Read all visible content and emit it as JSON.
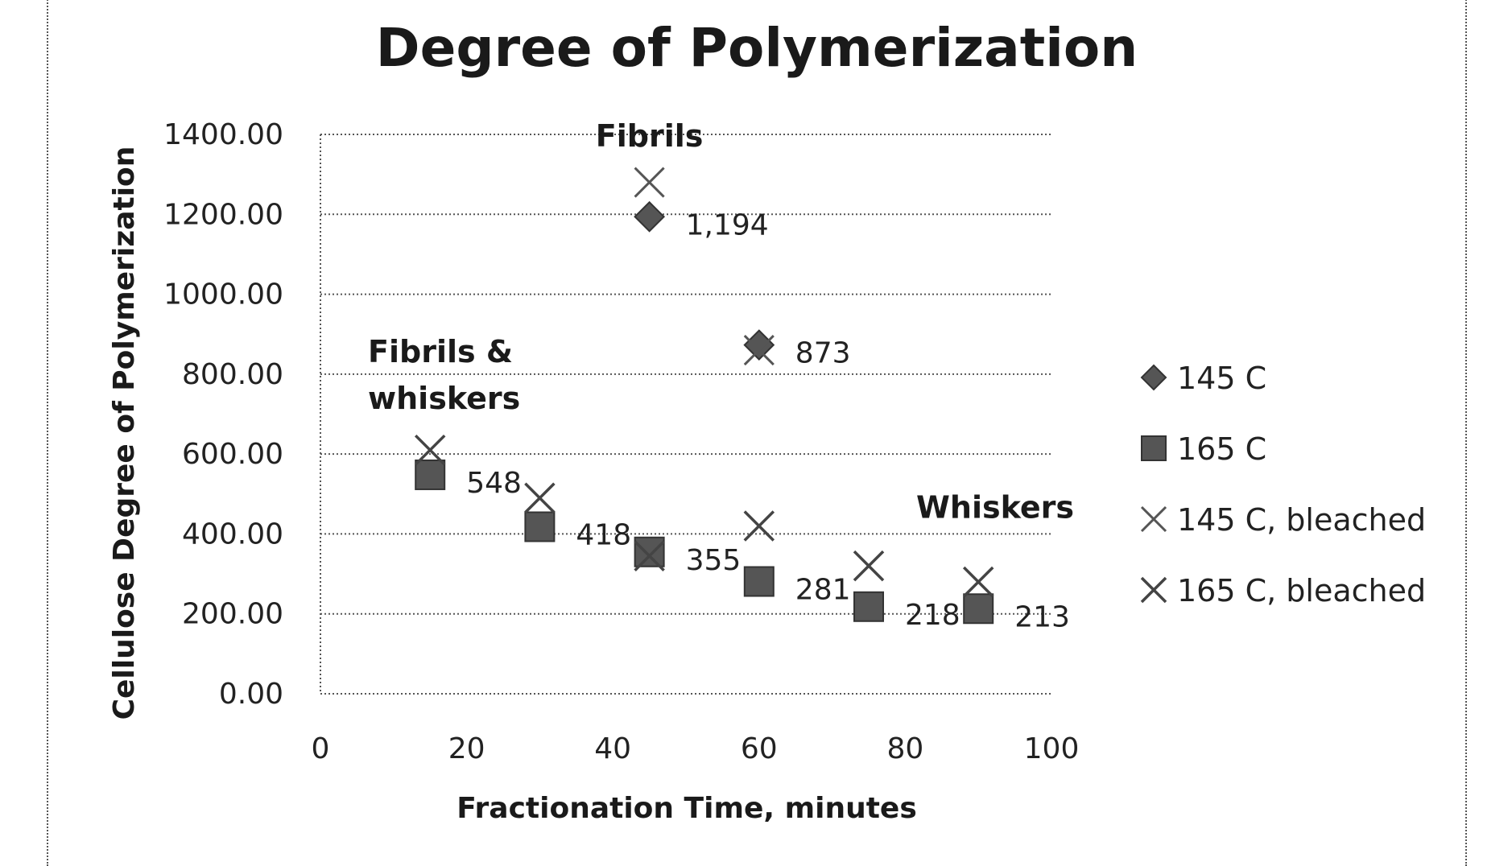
{
  "chart_data": {
    "type": "scatter",
    "title": "Degree of Polymerization",
    "xlabel": "Fractionation Time, minutes",
    "ylabel": "Cellulose Degree of Polymerization",
    "xlim": [
      0,
      100
    ],
    "ylim": [
      0,
      1400
    ],
    "x_ticks": [
      "0",
      "20",
      "40",
      "60",
      "80",
      "100"
    ],
    "y_ticks": [
      "0.00",
      "200.00",
      "400.00",
      "600.00",
      "800.00",
      "1000.00",
      "1200.00",
      "1400.00"
    ],
    "grid": "horizontal",
    "legend_position": "right",
    "series": [
      {
        "name": "145 C",
        "marker": "diamond",
        "x": [
          45,
          60
        ],
        "y": [
          1194,
          873
        ]
      },
      {
        "name": "165 C",
        "marker": "square",
        "x": [
          15,
          30,
          45,
          60,
          75,
          90
        ],
        "y": [
          548,
          418,
          355,
          281,
          218,
          213
        ]
      },
      {
        "name": "145 C, bleached",
        "marker": "x-thin",
        "x": [
          45,
          60
        ],
        "y": [
          1280,
          860
        ]
      },
      {
        "name": "165 C, bleached",
        "marker": "x",
        "x": [
          15,
          30,
          45,
          60,
          75,
          90
        ],
        "y": [
          610,
          490,
          345,
          420,
          320,
          280
        ]
      }
    ],
    "data_labels": [
      {
        "x": 45,
        "y": 1194,
        "text": "1,194"
      },
      {
        "x": 60,
        "y": 873,
        "text": "873"
      },
      {
        "x": 15,
        "y": 548,
        "text": "548"
      },
      {
        "x": 30,
        "y": 418,
        "text": "418"
      },
      {
        "x": 45,
        "y": 355,
        "text": "355"
      },
      {
        "x": 60,
        "y": 281,
        "text": "281"
      },
      {
        "x": 75,
        "y": 218,
        "text": "218"
      },
      {
        "x": 90,
        "y": 213,
        "text": "213"
      }
    ],
    "annotations": [
      {
        "lines": [
          "Fibrils"
        ],
        "x": 45,
        "y": 1370
      },
      {
        "lines": [
          "Fibrils &",
          "whiskers"
        ],
        "x": 6.5,
        "y": 830
      },
      {
        "lines": [
          "Whiskers"
        ],
        "x": 81.5,
        "y": 440
      }
    ]
  },
  "colors": {
    "marker": "#555555",
    "text": "#1a1a1a",
    "grid": "#555555"
  }
}
